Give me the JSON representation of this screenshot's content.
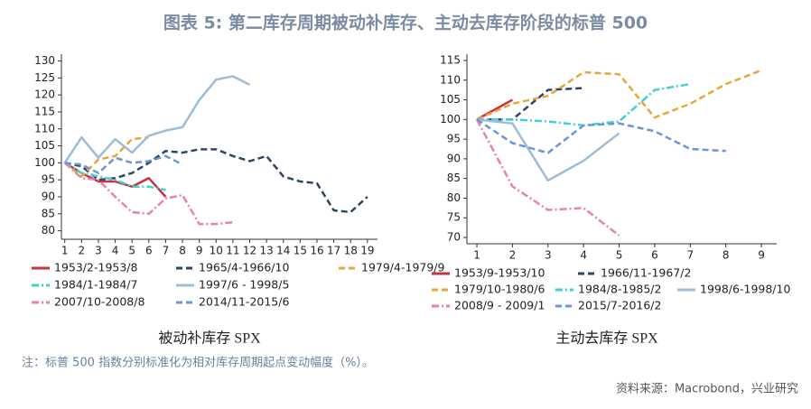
{
  "title": "图表 5:  第二库存周期被动补库存、主动去库存阶段的标普 500",
  "note": "注：标普 500 指数分别标准化为相对库存周期起点变动幅度（%）。",
  "source": "资料来源：Macrobond，兴业研究",
  "chart_data": [
    {
      "type": "line",
      "title": "被动补库存 SPX",
      "x": [
        1,
        2,
        3,
        4,
        5,
        6,
        7,
        8,
        9,
        10,
        11,
        12,
        13,
        14,
        15,
        16,
        17,
        18,
        19
      ],
      "xlim": [
        0.8,
        19.6
      ],
      "xticks": [
        1,
        2,
        3,
        4,
        5,
        6,
        7,
        8,
        9,
        10,
        11,
        12,
        13,
        14,
        15,
        16,
        17,
        18,
        19
      ],
      "ylim": [
        77.5,
        132
      ],
      "yticks": [
        80,
        85,
        90,
        95,
        100,
        105,
        110,
        115,
        120,
        125,
        130
      ],
      "series": [
        {
          "name": "1953/2-1953/8",
          "color": "#c8323c",
          "style": "solid",
          "values": [
            100,
            97,
            94.5,
            94.5,
            93,
            95.5,
            90,
            null,
            null,
            null,
            null,
            null,
            null,
            null,
            null,
            null,
            null,
            null,
            null
          ]
        },
        {
          "name": "1965/4-1966/10",
          "color": "#2f4566",
          "style": "dashed",
          "values": [
            100,
            99,
            95,
            95.5,
            97,
            100,
            103.5,
            103,
            104,
            104,
            102,
            100.5,
            102,
            96,
            94.5,
            94,
            86,
            85.5,
            90
          ]
        },
        {
          "name": "1979/4-1979/9",
          "color": "#eba43c",
          "style": "dashed",
          "values": [
            100,
            96,
            101,
            102,
            107,
            107.5,
            null,
            null,
            null,
            null,
            null,
            null,
            null,
            null,
            null,
            null,
            null,
            null,
            null
          ]
        },
        {
          "name": "1984/1-1984/7",
          "color": "#40d2d2",
          "style": "dashdot",
          "values": [
            100,
            97,
            96,
            95,
            93,
            93,
            92,
            null,
            null,
            null,
            null,
            null,
            null,
            null,
            null,
            null,
            null,
            null,
            null
          ]
        },
        {
          "name": "1997/6 - 1998/5",
          "color": "#9dbcd8",
          "style": "solid",
          "values": [
            100,
            107.5,
            101.5,
            107,
            103,
            108,
            109.5,
            110.5,
            118.5,
            124.5,
            125.5,
            123,
            null,
            null,
            null,
            null,
            null,
            null,
            null
          ]
        },
        {
          "name": "2007/10-2008/8",
          "color": "#e883a3",
          "style": "dashdot",
          "values": [
            100,
            95.5,
            95,
            90,
            85.5,
            85,
            89.5,
            90.5,
            82,
            82,
            82.5,
            null,
            null,
            null,
            null,
            null,
            null,
            null,
            null
          ]
        },
        {
          "name": "2014/11-2015/6",
          "color": "#6c94d6",
          "style": "dashed",
          "values": [
            100,
            99.5,
            97,
            101.5,
            100,
            100.5,
            102,
            99.5,
            null,
            null,
            null,
            null,
            null,
            null,
            null,
            null,
            null,
            null,
            null
          ]
        }
      ]
    },
    {
      "type": "line",
      "title": "主动去库存 SPX",
      "x": [
        1,
        2,
        3,
        4,
        5,
        6,
        7,
        8,
        9
      ],
      "xlim": [
        0.72,
        9.43
      ],
      "xticks": [
        1,
        2,
        3,
        4,
        5,
        6,
        7,
        8,
        9
      ],
      "ylim": [
        68.4,
        116.6
      ],
      "yticks": [
        70,
        75,
        80,
        85,
        90,
        95,
        100,
        105,
        110,
        115
      ],
      "series": [
        {
          "name": "1953/9-1953/10",
          "color": "#c8323c",
          "style": "solid",
          "values": [
            100,
            105,
            null,
            null,
            null,
            null,
            null,
            null,
            null
          ]
        },
        {
          "name": "1966/11-1967/2",
          "color": "#2f4566",
          "style": "dashed",
          "values": [
            100,
            100,
            107.5,
            108,
            null,
            null,
            null,
            null,
            null
          ]
        },
        {
          "name": "1979/10-1980/6",
          "color": "#eba43c",
          "style": "dashed",
          "values": [
            100,
            104,
            106,
            112,
            111.5,
            100.5,
            104,
            109,
            112.5
          ]
        },
        {
          "name": "1984/8-1985/2",
          "color": "#40d2d2",
          "style": "dashdot",
          "values": [
            100,
            100,
            99.5,
            98.5,
            99.5,
            107.5,
            109,
            null,
            null
          ]
        },
        {
          "name": "1998/6-1998/10",
          "color": "#9dbcd8",
          "style": "solid",
          "values": [
            100,
            99,
            84.5,
            89.5,
            96.5,
            null,
            null,
            null,
            null
          ]
        },
        {
          "name": "2008/9 - 2009/1",
          "color": "#e883a3",
          "style": "dashdot",
          "values": [
            100,
            83,
            77,
            77.5,
            70.5,
            null,
            null,
            null,
            null
          ]
        },
        {
          "name": "2015/7-2016/2",
          "color": "#6c94d6",
          "style": "dashed",
          "values": [
            100,
            94,
            91.5,
            98.5,
            99,
            97,
            92.5,
            92,
            null
          ]
        }
      ]
    }
  ]
}
